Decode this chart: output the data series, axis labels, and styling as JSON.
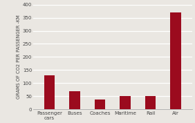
{
  "categories": [
    "Passenger\ncars",
    "Buses",
    "Coaches",
    "Maritime",
    "Rail",
    "Air"
  ],
  "values": [
    130,
    68,
    38,
    50,
    50,
    370
  ],
  "bar_color": "#9B0B1E",
  "ylabel": "GRAMS OF CO2 PER PASSENGER -KM",
  "ylim": [
    0,
    400
  ],
  "yticks": [
    0,
    50,
    100,
    150,
    200,
    250,
    300,
    350,
    400
  ],
  "background_color": "#EAE7E2",
  "grid_color": "#FFFFFF",
  "ylabel_fontsize": 4.8,
  "tick_fontsize": 5.0,
  "xlabel_fontsize": 5.2,
  "bar_width": 0.42
}
